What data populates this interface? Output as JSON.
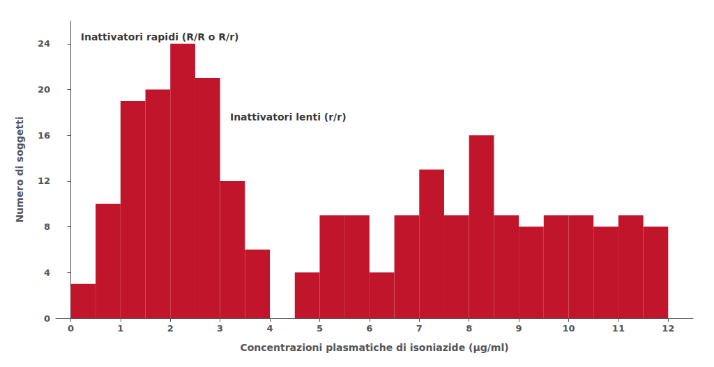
{
  "chart_data": {
    "type": "histogram",
    "bins": [
      0.0,
      0.5,
      1.0,
      1.5,
      2.0,
      2.5,
      3.0,
      3.5,
      4.0,
      4.5,
      5.0,
      5.5,
      6.0,
      6.5,
      7.0,
      7.5,
      8.0,
      8.5,
      9.0,
      9.5,
      10.0,
      10.5,
      11.0,
      11.5,
      12.0
    ],
    "values": [
      3,
      10,
      19,
      20,
      24,
      21,
      12,
      6,
      0,
      4,
      9,
      9,
      4,
      9,
      13,
      9,
      16,
      9,
      8,
      9,
      9,
      8,
      9,
      8
    ],
    "color": "#c0152a",
    "xlabel": "Concentrazioni plasmatiche di isoniazide (μg/ml)",
    "ylabel": "Numero di soggetti",
    "annotations": [
      {
        "text": "Inattivatori rapidi (R/R o R/r)",
        "x": 0.2,
        "y": 24.2
      },
      {
        "text": "Inattivatori lenti (r/r)",
        "x": 3.2,
        "y": 17.2
      }
    ],
    "xlim": [
      -0.3,
      12.5
    ],
    "ylim": [
      0,
      26
    ],
    "xticks": [
      0,
      1,
      2,
      3,
      4,
      5,
      6,
      7,
      8,
      9,
      10,
      11,
      12
    ],
    "yticks": [
      0,
      4,
      8,
      12,
      16,
      20,
      24
    ],
    "grid": false
  }
}
